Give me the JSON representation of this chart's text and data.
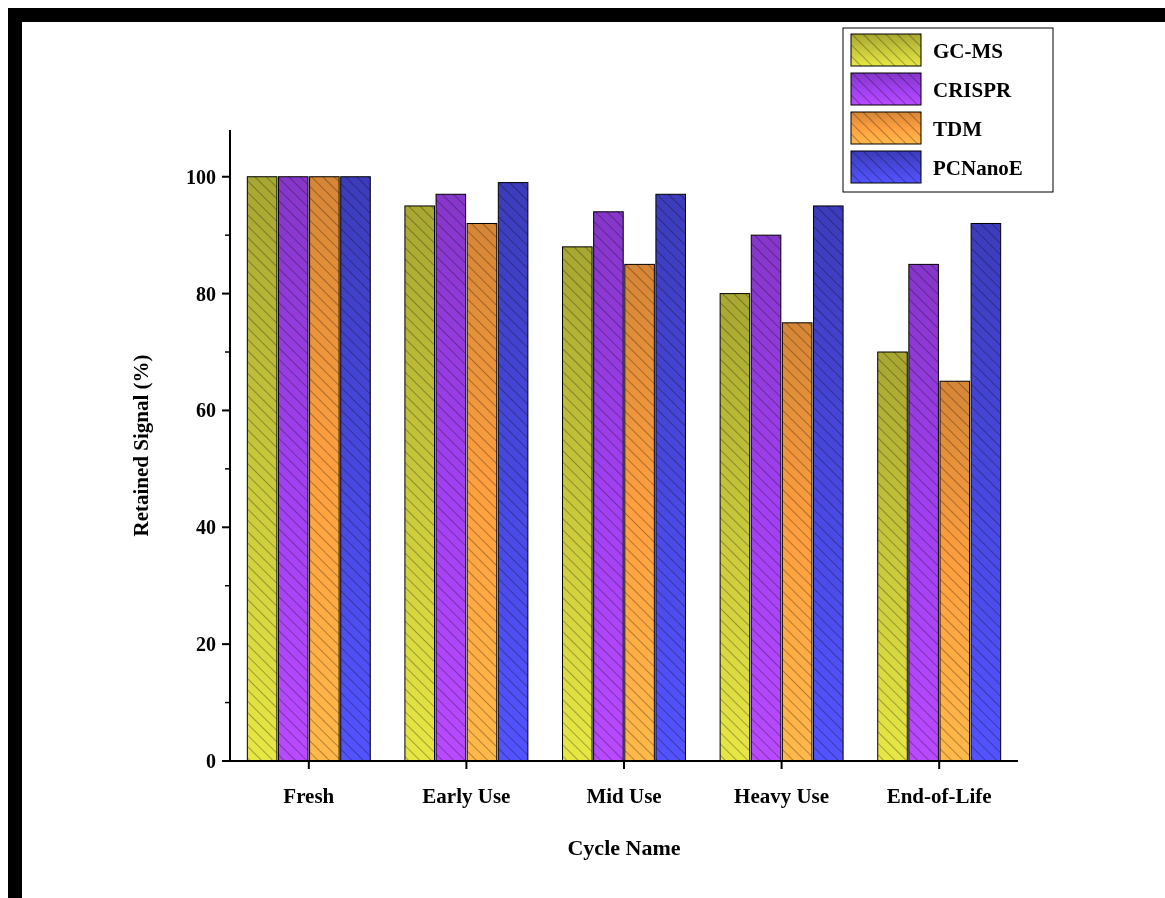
{
  "chart_data": {
    "type": "bar",
    "xlabel": "Cycle Name",
    "ylabel": "Retained Signal (%)",
    "categories": [
      "Fresh",
      "Early Use",
      "Mid Use",
      "Heavy Use",
      "End-of-Life"
    ],
    "series": [
      {
        "name": "GC-MS",
        "color": "#c8c83c",
        "values": [
          100,
          95,
          88,
          80,
          70
        ]
      },
      {
        "name": "CRISPR",
        "color": "#a040f0",
        "values": [
          100,
          97,
          94,
          90,
          85
        ]
      },
      {
        "name": "TDM",
        "color": "#ffa040",
        "values": [
          100,
          92,
          85,
          75,
          65
        ]
      },
      {
        "name": "PCNanoE",
        "color": "#4848e0",
        "values": [
          100,
          99,
          97,
          95,
          92
        ]
      }
    ],
    "ylim": [
      0,
      108
    ],
    "yticks": [
      0,
      20,
      40,
      60,
      80,
      100
    ],
    "legend": "top right",
    "grid": false
  }
}
